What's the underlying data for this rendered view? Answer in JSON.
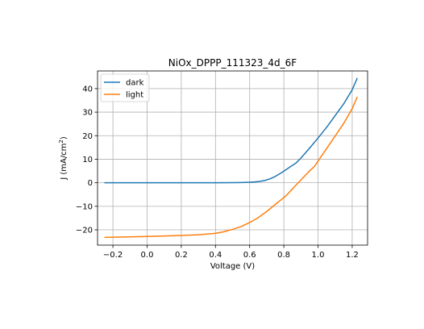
{
  "chart_data": {
    "type": "line",
    "title": "NiOx_DPPP_111323_4d_6F",
    "xlabel": "Voltage (V)",
    "ylabel_prefix": "J (mA/cm",
    "ylabel_sup": "2",
    "ylabel_suffix": ")",
    "xlim": [
      -0.29,
      1.29
    ],
    "ylim": [
      -26.5,
      47.5
    ],
    "xticks": [
      -0.2,
      0.0,
      0.2,
      0.4,
      0.6,
      0.8,
      1.0,
      1.2
    ],
    "xtick_labels": [
      "−0.2",
      "0.0",
      "0.2",
      "0.4",
      "0.6",
      "0.8",
      "1.0",
      "1.2"
    ],
    "yticks": [
      -20,
      -10,
      0,
      10,
      20,
      30,
      40
    ],
    "ytick_labels": [
      "−20",
      "−10",
      "0",
      "10",
      "20",
      "30",
      "40"
    ],
    "grid": true,
    "legend_position": "top-left",
    "series": [
      {
        "name": "dark",
        "color": "#1f77b4",
        "x": [
          -0.25,
          -0.1,
          0.0,
          0.1,
          0.2,
          0.3,
          0.4,
          0.5,
          0.55,
          0.6,
          0.63,
          0.66,
          0.69,
          0.72,
          0.75,
          0.78,
          0.81,
          0.84,
          0.87,
          0.9,
          0.93,
          0.96,
          1.0,
          1.05,
          1.1,
          1.15,
          1.2,
          1.23
        ],
        "y": [
          0,
          0,
          0,
          0,
          0,
          0,
          0,
          0.05,
          0.1,
          0.2,
          0.35,
          0.6,
          1.0,
          1.7,
          2.7,
          4.0,
          5.4,
          6.9,
          8.3,
          10.5,
          13.0,
          15.5,
          19.0,
          23.5,
          28.5,
          33.5,
          39.5,
          44.5
        ]
      },
      {
        "name": "light",
        "color": "#ff7f0e",
        "x": [
          -0.25,
          -0.1,
          0.0,
          0.1,
          0.2,
          0.3,
          0.4,
          0.45,
          0.5,
          0.55,
          0.6,
          0.65,
          0.7,
          0.75,
          0.8,
          0.82,
          0.85,
          0.9,
          0.95,
          0.98,
          1.0,
          1.05,
          1.1,
          1.15,
          1.2,
          1.23
        ],
        "y": [
          -23.2,
          -23.0,
          -22.8,
          -22.6,
          -22.4,
          -22.1,
          -21.5,
          -20.8,
          -19.8,
          -18.6,
          -16.9,
          -14.8,
          -12.2,
          -9.2,
          -6.3,
          -5.0,
          -2.6,
          1.2,
          5.0,
          7.0,
          9.2,
          14.5,
          19.8,
          25.2,
          31.5,
          36.5
        ]
      }
    ]
  }
}
